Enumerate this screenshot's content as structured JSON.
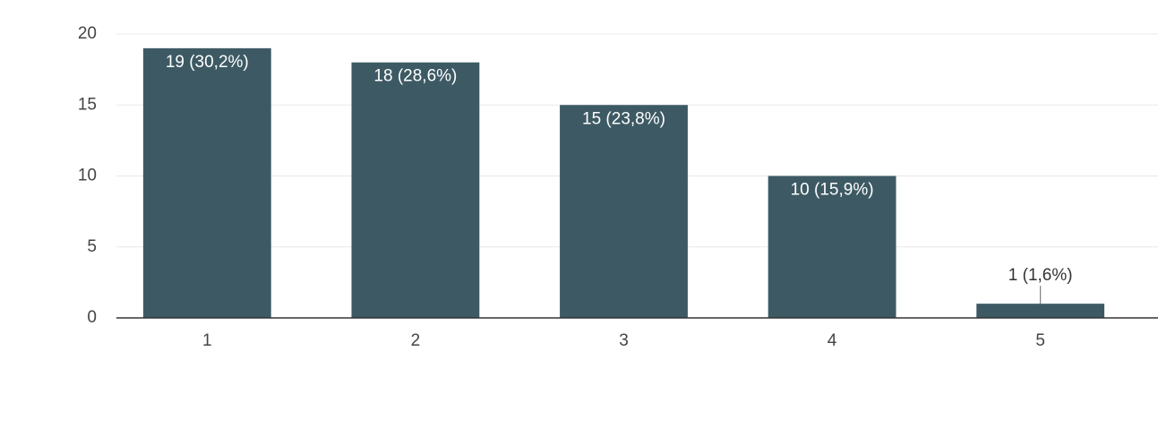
{
  "chart_data": {
    "type": "bar",
    "categories": [
      "1",
      "2",
      "3",
      "4",
      "5"
    ],
    "values": [
      19,
      18,
      15,
      10,
      1
    ],
    "value_labels": [
      "19 (30,2%)",
      "18 (28,6%)",
      "15 (23,8%)",
      "10 (15,9%)",
      "1 (1,6%)"
    ],
    "color": "#3d5a64",
    "ylim": [
      0,
      20
    ],
    "yticks": [
      0,
      5,
      10,
      15,
      20
    ],
    "grid": true
  }
}
